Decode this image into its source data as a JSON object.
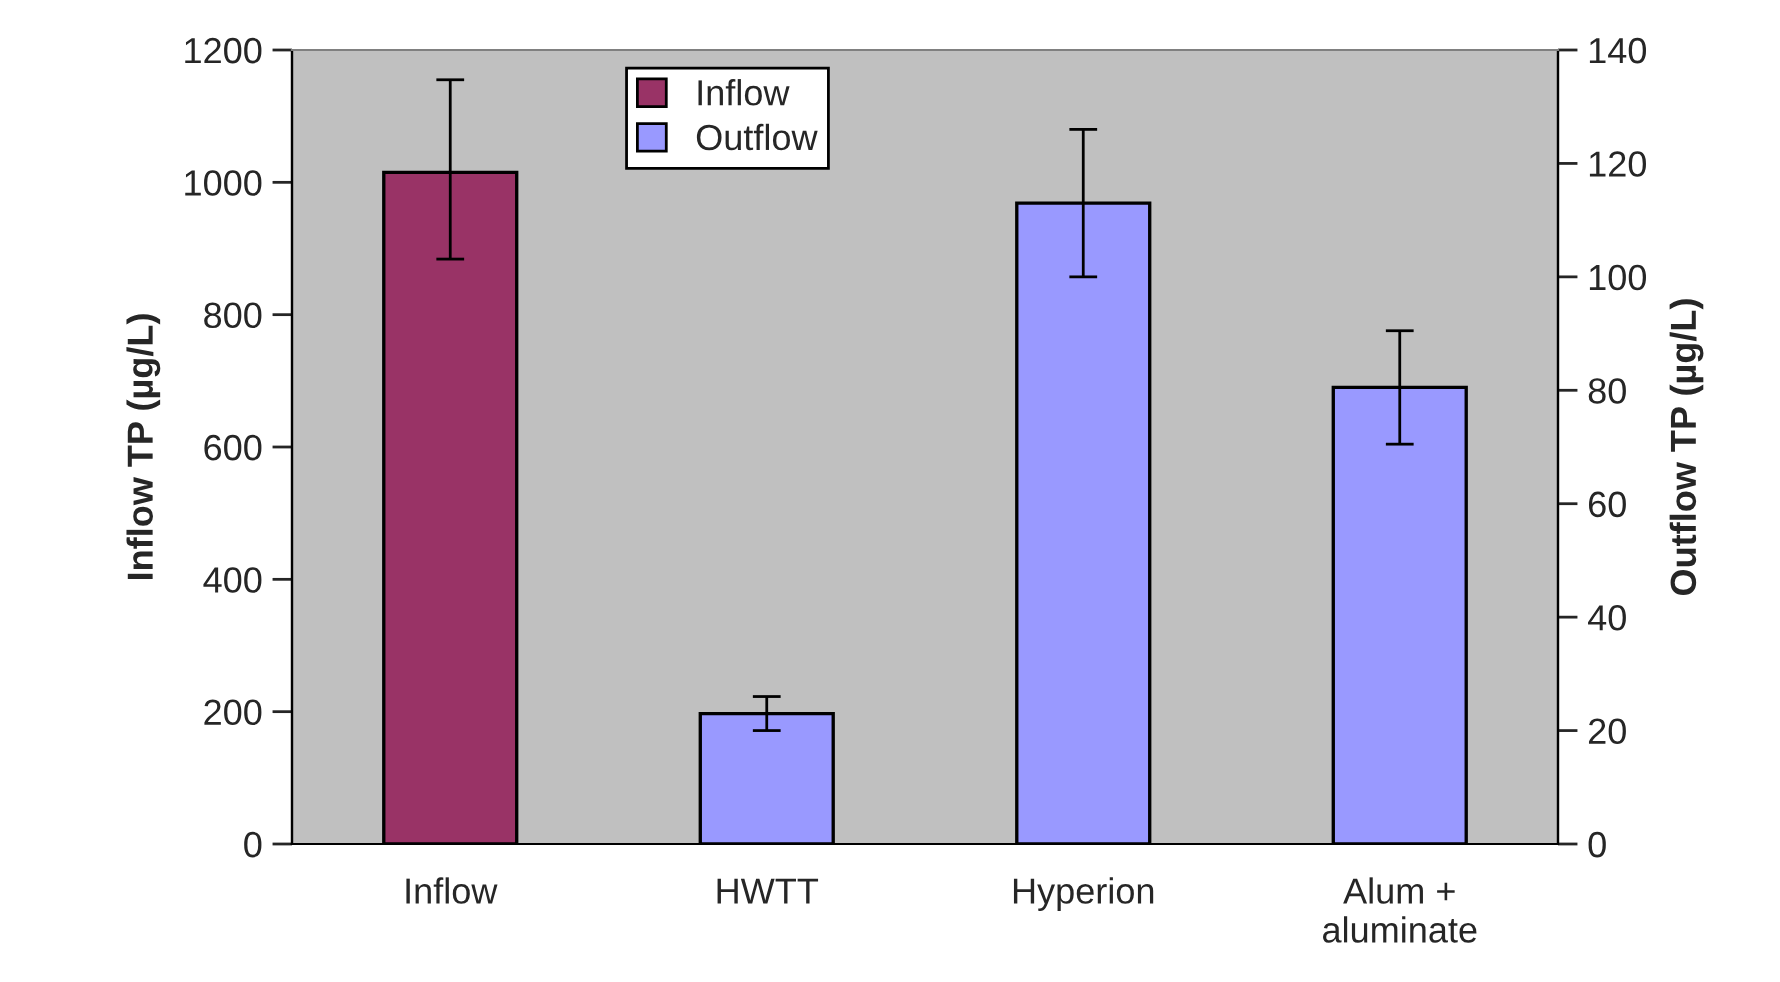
{
  "chart_data": {
    "type": "bar",
    "categories": [
      "Inflow",
      "HWTT",
      "Hyperion",
      "Alum +\naluminate"
    ],
    "series": [
      {
        "name": "Inflow",
        "color": "#993366",
        "values": [
          1015,
          null,
          null,
          null
        ],
        "errors": [
          [
            884,
            1155
          ],
          null,
          null,
          null
        ]
      },
      {
        "name": "Outflow",
        "color": "#9999ff",
        "axis": "y2",
        "values": [
          null,
          23,
          113,
          80.5
        ],
        "errors": [
          null,
          3,
          13,
          10
        ]
      }
    ],
    "ylabel": "Inflow TP (µg/L)",
    "y2label": "Outflow TP (µg/L)",
    "ylim": [
      0,
      1200
    ],
    "yticks": [
      0,
      200,
      400,
      600,
      800,
      1000,
      1200
    ],
    "y2lim": [
      0,
      140
    ],
    "y2ticks": [
      0,
      20,
      40,
      60,
      80,
      100,
      120,
      140
    ],
    "grid": false,
    "legend": "top left"
  }
}
